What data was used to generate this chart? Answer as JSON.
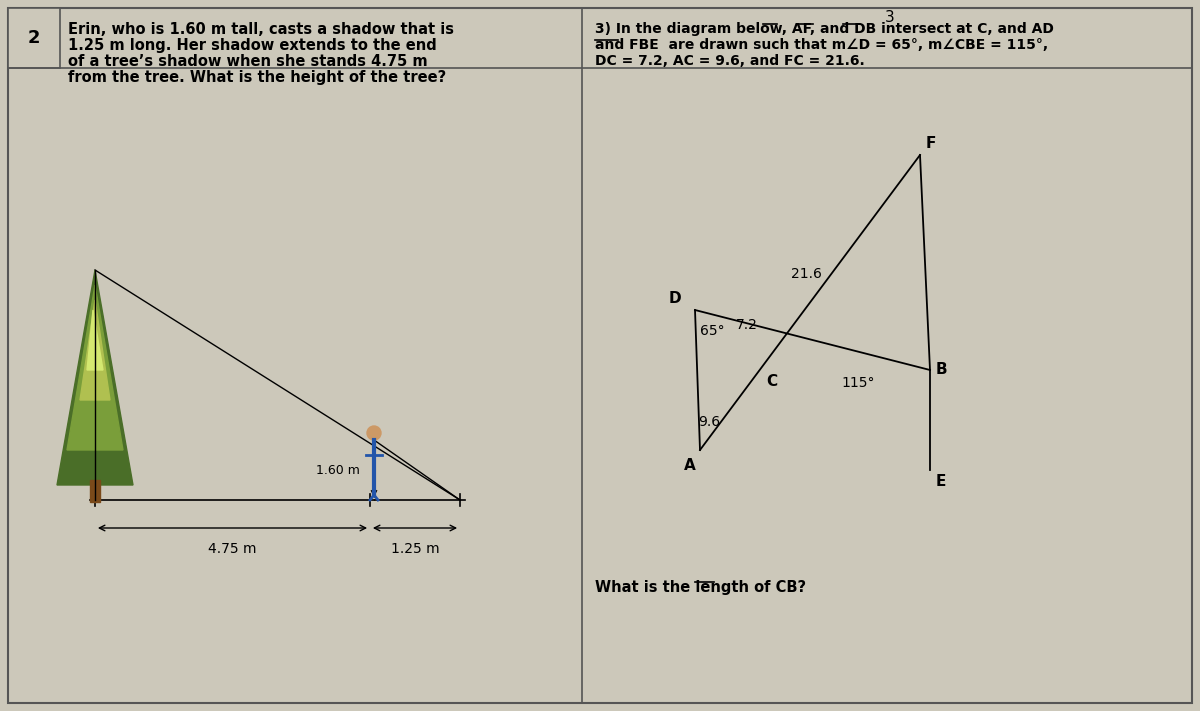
{
  "bg_color": "#ccc8ba",
  "panel_bg": "#ccc8ba",
  "border_color": "#555555",
  "fig_width": 12.0,
  "fig_height": 7.11,
  "left_panel": {
    "number": "2",
    "text_lines": [
      "Erin, who is 1.60 m tall, casts a shadow that is",
      "1.25 m long. Her shadow extends to the end",
      "of a tree’s shadow when she stands 4.75 m",
      "from the tree. What is the height of the tree?"
    ],
    "label_475": "4.75 m",
    "label_125": "1.25 m",
    "label_160": "1.60 m",
    "tree_color_dark": "#4a6e28",
    "tree_color_mid": "#7a9e3a",
    "tree_color_light": "#b0c050",
    "trunk_color": "#7a4a1a"
  },
  "right_panel": {
    "text_lines": [
      "3) In the diagram below, AF, and DB intersect at C, and AD",
      "and FBE  are drawn such that m∠D = 65°, m∠CBE = 115°,",
      "DC = 7.2, AC = 9.6, and FC = 21.6."
    ],
    "question": "What is the length of CB?",
    "label_72": "7.2",
    "label_96": "9.6",
    "label_216": "21.6",
    "label_65": "65°",
    "label_115": "115°"
  }
}
